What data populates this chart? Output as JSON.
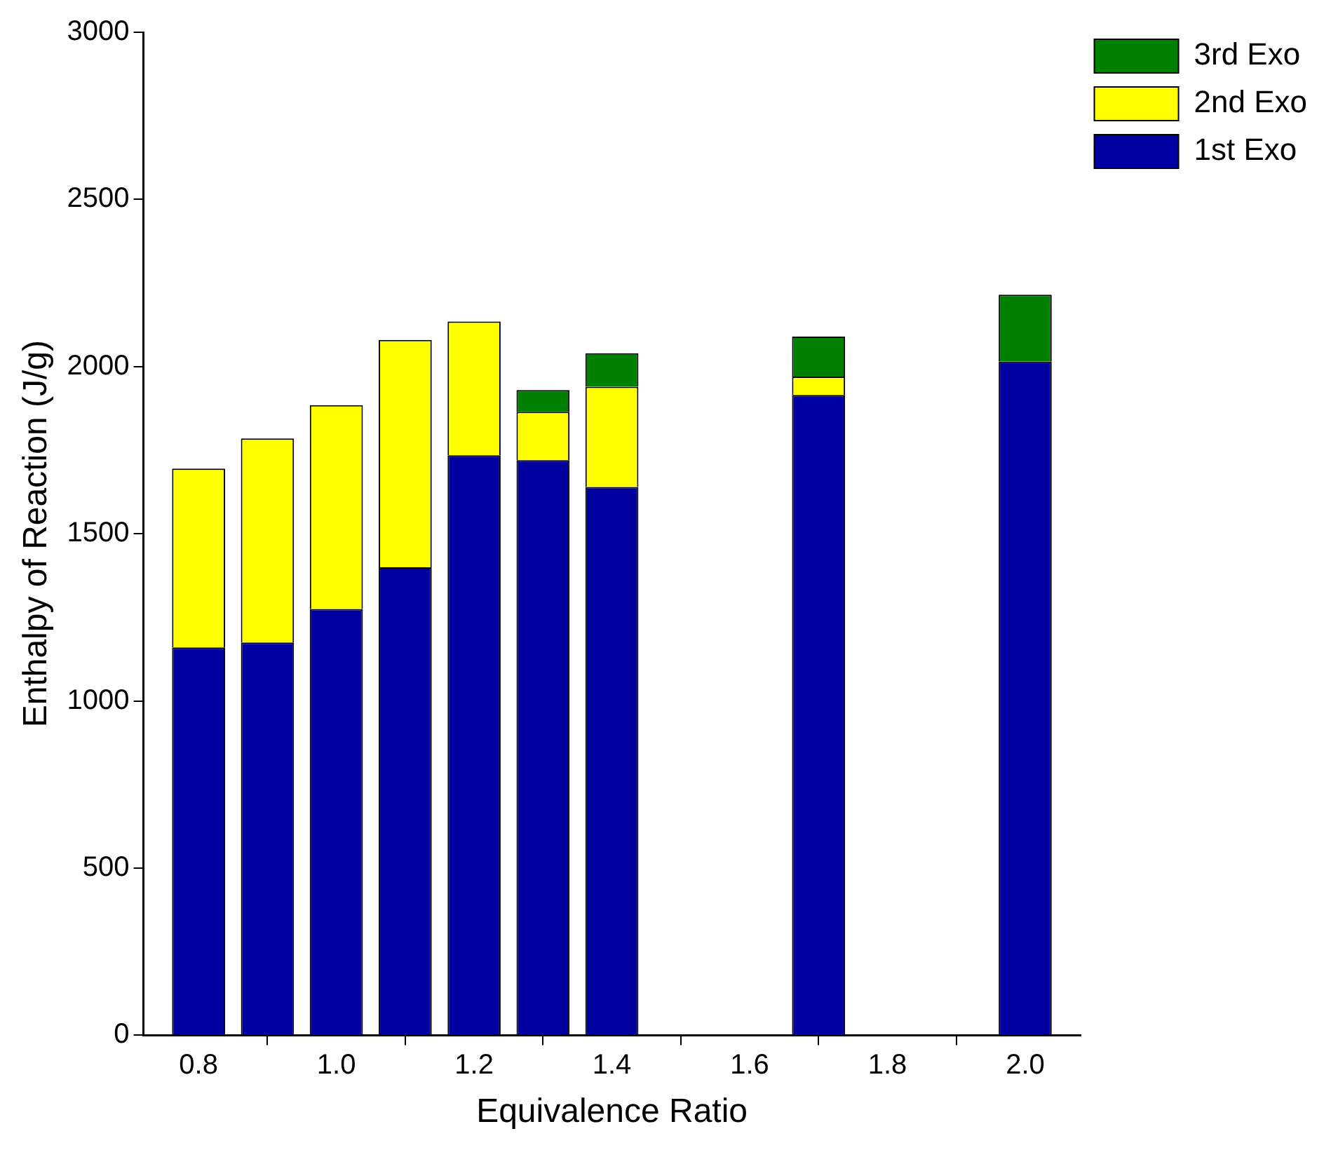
{
  "chart_data": {
    "type": "bar",
    "stacked": true,
    "xlabel": "Equivalence Ratio",
    "ylabel": "Enthalpy of Reaction (J/g)",
    "x": [
      0.8,
      0.9,
      1.0,
      1.1,
      1.2,
      1.3,
      1.4,
      1.7,
      2.0
    ],
    "series": [
      {
        "name": "1st Exo",
        "color": "#0000a0",
        "values": [
          1160,
          1175,
          1275,
          1400,
          1735,
          1720,
          1640,
          1915,
          2015
        ]
      },
      {
        "name": "2nd Exo",
        "color": "#ffff00",
        "values": [
          535,
          610,
          610,
          680,
          400,
          145,
          300,
          55,
          null
        ]
      },
      {
        "name": "3rd Exo",
        "color": "#008000",
        "values": [
          null,
          null,
          null,
          null,
          null,
          65,
          100,
          120,
          200
        ]
      }
    ],
    "xlim": [
      0.72,
      2.08
    ],
    "xticks": [
      {
        "value": 0.8,
        "label": "0.8"
      },
      {
        "value": 1.0,
        "label": "1.0"
      },
      {
        "value": 1.2,
        "label": "1.2"
      },
      {
        "value": 1.4,
        "label": "1.4"
      },
      {
        "value": 1.6,
        "label": "1.6"
      },
      {
        "value": 1.8,
        "label": "1.8"
      },
      {
        "value": 2.0,
        "label": "2.0"
      }
    ],
    "ylim": [
      0,
      3000
    ],
    "yticks": [
      0,
      500,
      1000,
      1500,
      2000,
      2500,
      3000
    ],
    "grid": false,
    "legend": "top right"
  }
}
